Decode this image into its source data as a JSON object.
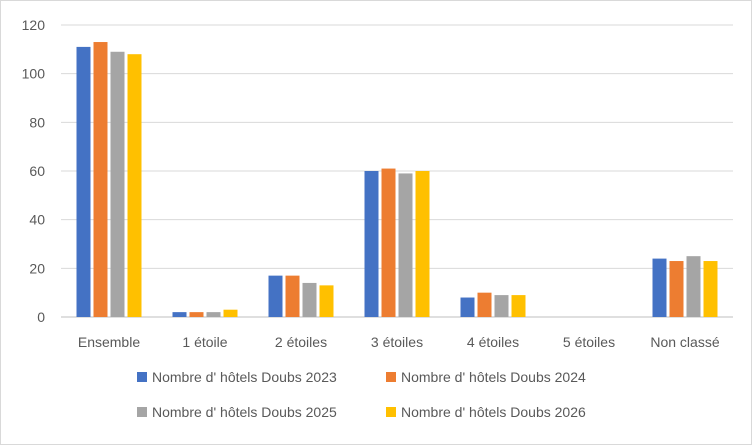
{
  "chart_data": {
    "type": "bar",
    "categories": [
      "Ensemble",
      "1 étoile",
      "2 étoiles",
      "3 étoiles",
      "4 étoiles",
      "5 étoiles",
      "Non classé"
    ],
    "series": [
      {
        "name": "Nombre d' hôtels Doubs 2023",
        "color": "#4472c4",
        "values": [
          111,
          2,
          17,
          60,
          8,
          0,
          24
        ]
      },
      {
        "name": "Nombre d' hôtels Doubs 2024",
        "color": "#ed7d31",
        "values": [
          113,
          2,
          17,
          61,
          10,
          0,
          23
        ]
      },
      {
        "name": "Nombre d' hôtels Doubs 2025",
        "color": "#a5a5a5",
        "values": [
          109,
          2,
          14,
          59,
          9,
          0,
          25
        ]
      },
      {
        "name": "Nombre d' hôtels Doubs 2026",
        "color": "#ffc000",
        "values": [
          108,
          3,
          13,
          60,
          9,
          0,
          23
        ]
      }
    ],
    "title": "",
    "xlabel": "",
    "ylabel": "",
    "ylim": [
      0,
      120
    ],
    "yticks": [
      "0",
      "20",
      "40",
      "60",
      "80",
      "100",
      "120"
    ],
    "grid": true,
    "legend": "bottom"
  }
}
